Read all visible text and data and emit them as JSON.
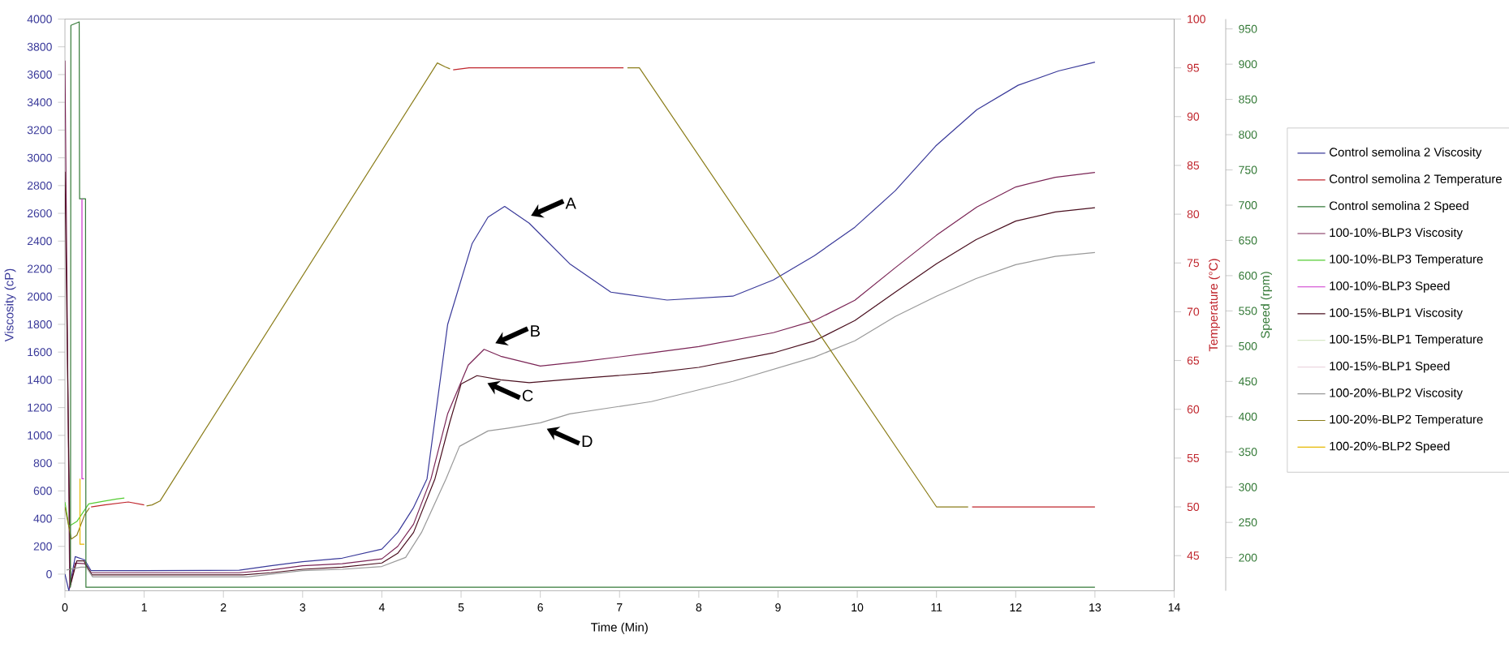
{
  "chart_data": {
    "type": "line",
    "xlabel": "Time (Min)",
    "ylabel": "Viscosity (cP)",
    "y2label": "Temperature (°C)",
    "y3label": "Speed (rpm)",
    "xlim": [
      0,
      14
    ],
    "xticks": [
      0,
      1,
      2,
      3,
      4,
      5,
      6,
      7,
      8,
      9,
      10,
      11,
      12,
      13,
      14
    ],
    "ylim": [
      -120,
      4000
    ],
    "yticks": [
      0,
      200,
      400,
      600,
      800,
      1000,
      1200,
      1400,
      1600,
      1800,
      2000,
      2200,
      2400,
      2600,
      2800,
      3000,
      3200,
      3400,
      3600,
      3800,
      4000
    ],
    "y2lim": [
      41.4,
      100
    ],
    "y2ticks": [
      45,
      50,
      55,
      60,
      65,
      70,
      75,
      80,
      85,
      90,
      95,
      100
    ],
    "y3lim": [
      153,
      964
    ],
    "y3ticks": [
      200,
      250,
      300,
      350,
      400,
      450,
      500,
      550,
      600,
      650,
      700,
      750,
      800,
      850,
      900,
      950
    ],
    "legend": "right",
    "marker": "none",
    "line_style": "solid",
    "series": [
      {
        "name": "Control semolina 2 Viscosity",
        "color": "#3a3a9a",
        "axis": "y",
        "x": [
          0,
          0.05,
          0.13,
          0.25,
          0.33,
          1,
          2.2,
          2.6,
          3,
          3.5,
          4,
          4.2,
          4.4,
          4.57,
          4.83,
          5.14,
          5.34,
          5.55,
          5.86,
          6.37,
          6.89,
          7.6,
          8.43,
          8.94,
          9.46,
          9.97,
          10.48,
          10.99,
          11.51,
          12.03,
          12.54,
          13
        ],
        "values": [
          0,
          -120,
          126,
          102,
          25,
          25,
          28,
          60,
          90,
          115,
          180,
          300,
          480,
          687,
          1798,
          2383,
          2573,
          2650,
          2529,
          2237,
          2032,
          1975,
          2003,
          2120,
          2295,
          2500,
          2763,
          3085,
          3347,
          3523,
          3626,
          3690
        ]
      },
      {
        "name": "Control semolina 2 Temperature",
        "color": "#c0262d",
        "axis": "y2",
        "x": [
          0.33,
          0.5,
          0.8,
          1.0,
          2,
          4.9,
          5.1,
          6.0,
          7.05,
          9,
          11.45,
          12,
          13
        ],
        "values": [
          50,
          50.2,
          50.5,
          50.2,
          null,
          94.8,
          95,
          95,
          95,
          null,
          50,
          50,
          50
        ]
      },
      {
        "name": "Control semolina 2 Speed",
        "color": "#357a38",
        "axis": "y3",
        "x": [
          0.07,
          0.075,
          0.18,
          0.185,
          0.26,
          0.265,
          13
        ],
        "values": [
          158,
          955,
          960,
          709,
          709,
          158,
          158
        ]
      },
      {
        "name": "100-10%-BLP3 Viscosity",
        "color": "#7a2455",
        "axis": "y",
        "x": [
          0,
          0.06,
          0.13,
          0.25,
          0.33,
          2.2,
          2.6,
          3,
          3.5,
          4,
          4.2,
          4.4,
          4.62,
          4.83,
          5.09,
          5.29,
          5.5,
          6.0,
          6.5,
          7.4,
          8.0,
          8.94,
          9.46,
          9.97,
          10.48,
          11.0,
          11.51,
          12.0,
          12.5,
          13
        ],
        "values": [
          3700,
          -100,
          80,
          75,
          10,
          10,
          30,
          60,
          75,
          110,
          200,
          360,
          687,
          1155,
          1506,
          1620,
          1570,
          1500,
          1530,
          1594,
          1640,
          1740,
          1827,
          1974,
          2208,
          2442,
          2646,
          2790,
          2860,
          2895
        ]
      },
      {
        "name": "100-10%-BLP3 Temperature",
        "color": "#55cc33",
        "axis": "y2",
        "x": [
          0,
          0.05,
          0.15,
          0.3,
          0.5,
          0.65,
          0.75
        ],
        "values": [
          50.5,
          48,
          48.5,
          50.3,
          50.6,
          50.8,
          50.9
        ]
      },
      {
        "name": "100-10%-BLP3 Speed",
        "color": "#cc33cc",
        "axis": "y3",
        "x": [
          0.215,
          0.215,
          0.24
        ],
        "values": [
          709,
          312,
          312
        ]
      },
      {
        "name": "100-15%-BLP1 Viscosity",
        "color": "#4a0f1f",
        "axis": "y",
        "x": [
          0,
          0.07,
          0.15,
          0.24,
          0.34,
          2.25,
          2.6,
          3,
          3.5,
          4,
          4.2,
          4.4,
          4.67,
          4.86,
          5.0,
          5.2,
          5.5,
          5.86,
          6.5,
          7.4,
          8.0,
          8.94,
          9.46,
          9.97,
          10.48,
          11.0,
          11.5,
          12.0,
          12.5,
          13
        ],
        "values": [
          2900,
          -80,
          95,
          95,
          -5,
          -5,
          10,
          35,
          50,
          80,
          150,
          300,
          687,
          1100,
          1370,
          1430,
          1400,
          1380,
          1410,
          1450,
          1490,
          1594,
          1681,
          1827,
          2032,
          2237,
          2410,
          2544,
          2610,
          2640
        ]
      },
      {
        "name": "100-15%-BLP1 Temperature",
        "color": "#d8e8c8",
        "axis": "y2"
      },
      {
        "name": "100-15%-BLP1 Speed",
        "color": "#ecd6e0",
        "axis": "y3"
      },
      {
        "name": "100-20%-BLP2 Viscosity",
        "color": "#999999",
        "axis": "y",
        "x": [
          0.02,
          0.2,
          0.27,
          0.35,
          2.3,
          3,
          3.5,
          4,
          4.3,
          4.5,
          4.81,
          4.98,
          5.34,
          5.6,
          6.0,
          6.37,
          7.4,
          8.43,
          9.46,
          9.97,
          10.48,
          11.0,
          11.5,
          12.0,
          12.5,
          13
        ],
        "values": [
          30,
          50,
          50,
          -20,
          -20,
          25,
          35,
          55,
          120,
          300,
          687,
          921,
          1032,
          1053,
          1090,
          1155,
          1243,
          1389,
          1564,
          1681,
          1857,
          2003,
          2130,
          2230,
          2290,
          2318
        ]
      },
      {
        "name": "100-20%-BLP2 Temperature",
        "color": "#8b7d1a",
        "axis": "y2",
        "x": [
          0,
          0.08,
          0.15,
          0.25,
          0.31,
          0.6,
          1.03,
          1.1,
          1.2,
          4.7,
          4.8,
          4.86,
          6,
          7.1,
          7.25,
          11.0,
          11.4
        ],
        "values": [
          50,
          46.7,
          47.1,
          49.2,
          49.9,
          null,
          50.1,
          50.2,
          50.6,
          95.5,
          95.1,
          94.9,
          null,
          95,
          95,
          50,
          50
        ]
      },
      {
        "name": "100-20%-BLP2 Speed",
        "color": "#e6b800",
        "axis": "y3",
        "x": [
          0.19,
          0.19,
          0.245
        ],
        "values": [
          312,
          219,
          219
        ]
      }
    ],
    "annotations": [
      {
        "text": "A",
        "x": 5.8,
        "y": 2560
      },
      {
        "text": "B",
        "x": 5.35,
        "y": 1640
      },
      {
        "text": "C",
        "x": 5.25,
        "y": 1400
      },
      {
        "text": "D",
        "x": 6.0,
        "y": 1070
      }
    ]
  }
}
